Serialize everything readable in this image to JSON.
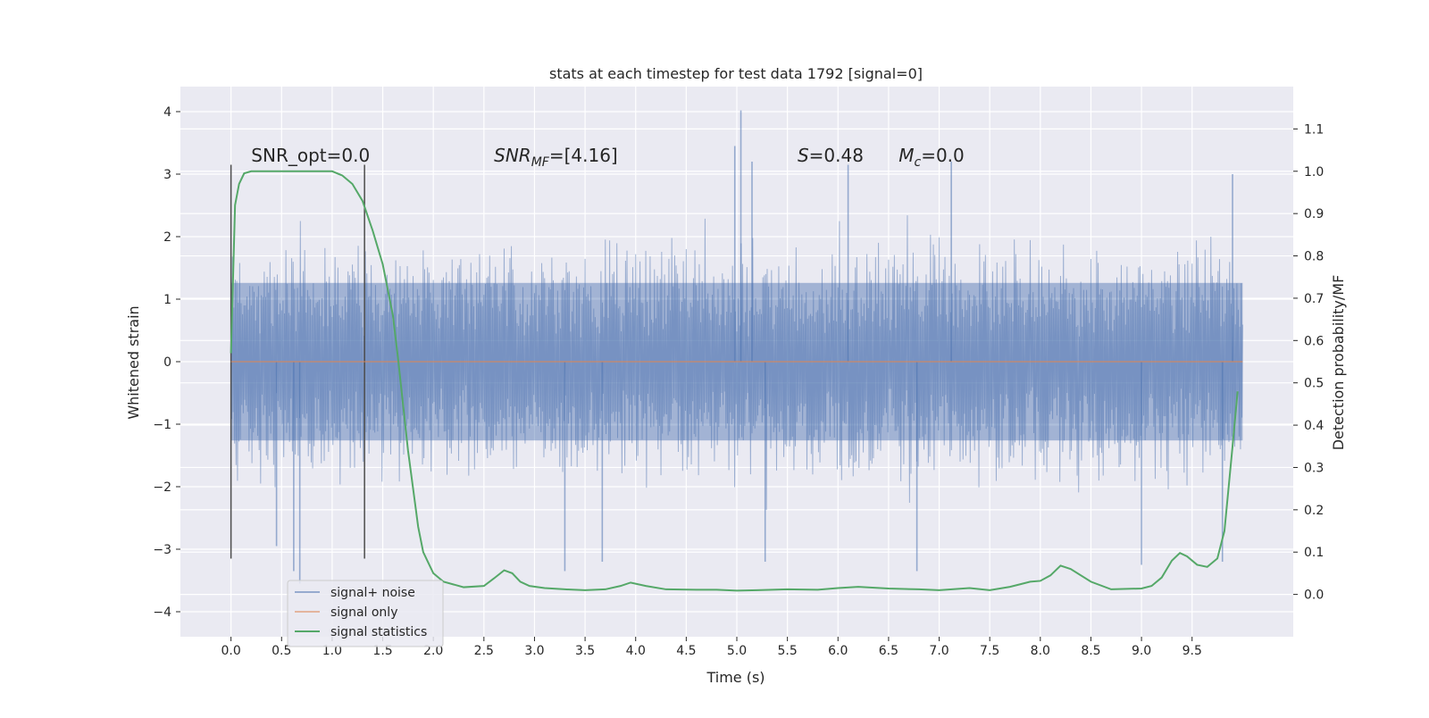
{
  "chart_data": {
    "type": "line",
    "title": "stats at each timestep for test data 1792 [signal=0]",
    "xlabel": "Time (s)",
    "ylabel": "Whitened strain",
    "y2label": "Detection probability/MF",
    "xlim": [
      -0.5,
      10.5
    ],
    "ylim": [
      -4.4,
      4.4
    ],
    "y2lim": [
      -0.1,
      1.2
    ],
    "x_ticks": [
      0.0,
      0.5,
      1.0,
      1.5,
      2.0,
      2.5,
      3.0,
      3.5,
      4.0,
      4.5,
      5.0,
      5.5,
      6.0,
      6.5,
      7.0,
      7.5,
      8.0,
      8.5,
      9.0,
      9.5
    ],
    "x_tick_labels": [
      "0.0",
      "0.5",
      "1.0",
      "1.5",
      "2.0",
      "2.5",
      "3.0",
      "3.5",
      "4.0",
      "4.5",
      "5.0",
      "5.5",
      "6.0",
      "6.5",
      "7.0",
      "7.5",
      "8.0",
      "8.5",
      "9.0",
      "9.5"
    ],
    "y_ticks": [
      4,
      3,
      2,
      1,
      0,
      -1,
      -2,
      -3,
      -4
    ],
    "y_tick_labels": [
      "4",
      "3",
      "2",
      "1",
      "0",
      "−1",
      "−2",
      "−3",
      "−4"
    ],
    "y2_ticks": [
      1.1,
      1.0,
      0.9,
      0.8,
      0.7,
      0.6,
      0.5,
      0.4,
      0.3,
      0.2,
      0.1,
      0.0
    ],
    "y2_tick_labels": [
      "1.1",
      "1.0",
      "0.9",
      "0.8",
      "0.7",
      "0.6",
      "0.5",
      "0.4",
      "0.3",
      "0.2",
      "0.1",
      "0.0"
    ],
    "grid": true,
    "legend_position": "lower-left",
    "series": [
      {
        "name": "signal+ noise",
        "color": "#4c72b0",
        "axis": "left",
        "description": "dense whitened noise, roughly uniform amplitude",
        "x_range": [
          0.0,
          10.0
        ],
        "envelope": {
          "typical_max": 2.1,
          "typical_min": -2.1
        },
        "peaks": [
          {
            "x": 5.04,
            "y": 4.02
          },
          {
            "x": 4.98,
            "y": 3.45
          },
          {
            "x": 5.15,
            "y": 3.2
          },
          {
            "x": 0.68,
            "y": -3.55
          },
          {
            "x": 0.62,
            "y": -3.35
          },
          {
            "x": 0.45,
            "y": -2.95
          },
          {
            "x": 3.3,
            "y": -3.35
          },
          {
            "x": 3.67,
            "y": -3.2
          },
          {
            "x": 5.28,
            "y": -3.2
          },
          {
            "x": 6.78,
            "y": -3.35
          },
          {
            "x": 9.0,
            "y": -3.25
          },
          {
            "x": 9.8,
            "y": -3.2
          },
          {
            "x": 7.12,
            "y": 3.2
          },
          {
            "x": 6.1,
            "y": 3.15
          },
          {
            "x": 9.9,
            "y": 3.0
          }
        ]
      },
      {
        "name": "signal only",
        "color": "#dd8452",
        "axis": "left",
        "x": [
          0.0,
          10.0
        ],
        "y": [
          0.0,
          0.0
        ]
      },
      {
        "name": "signal statistics",
        "color": "#55a868",
        "axis": "right",
        "x": [
          0.0,
          0.04,
          0.08,
          0.13,
          0.2,
          0.3,
          0.5,
          0.8,
          1.0,
          1.1,
          1.2,
          1.3,
          1.4,
          1.5,
          1.6,
          1.65,
          1.7,
          1.75,
          1.8,
          1.85,
          1.9,
          2.0,
          2.1,
          2.3,
          2.5,
          2.6,
          2.7,
          2.78,
          2.86,
          2.95,
          3.1,
          3.3,
          3.5,
          3.7,
          3.85,
          3.95,
          4.1,
          4.3,
          4.6,
          4.8,
          5.0,
          5.2,
          5.5,
          5.8,
          6.0,
          6.2,
          6.5,
          6.8,
          7.0,
          7.3,
          7.5,
          7.7,
          7.9,
          8.0,
          8.1,
          8.2,
          8.3,
          8.5,
          8.7,
          9.0,
          9.1,
          9.2,
          9.3,
          9.38,
          9.45,
          9.55,
          9.65,
          9.75,
          9.82,
          9.9,
          9.95
        ],
        "y": [
          0.57,
          0.92,
          0.97,
          0.995,
          1.0,
          1.0,
          1.0,
          1.0,
          1.0,
          0.99,
          0.97,
          0.93,
          0.86,
          0.78,
          0.66,
          0.56,
          0.45,
          0.34,
          0.25,
          0.16,
          0.1,
          0.05,
          0.03,
          0.017,
          0.02,
          0.038,
          0.057,
          0.05,
          0.03,
          0.02,
          0.015,
          0.012,
          0.01,
          0.012,
          0.02,
          0.028,
          0.02,
          0.012,
          0.011,
          0.011,
          0.009,
          0.01,
          0.012,
          0.011,
          0.015,
          0.018,
          0.014,
          0.012,
          0.01,
          0.015,
          0.01,
          0.018,
          0.03,
          0.032,
          0.045,
          0.068,
          0.06,
          0.03,
          0.012,
          0.014,
          0.02,
          0.04,
          0.08,
          0.098,
          0.09,
          0.07,
          0.065,
          0.085,
          0.15,
          0.35,
          0.48
        ]
      }
    ],
    "vertical_markers": [
      {
        "x": 0.0,
        "y_range": [
          -3.15,
          3.15
        ],
        "color": "#4d4d4d"
      },
      {
        "x": 1.32,
        "y_range": [
          -3.15,
          3.15
        ],
        "color": "#4d4d4d"
      }
    ],
    "annotations": [
      {
        "id": "snr_opt",
        "x": 0.2,
        "y": 3.2,
        "text": "SNR_opt=0.0"
      },
      {
        "id": "snr_mf",
        "x": 2.6,
        "y": 3.2,
        "text_main": "SNR",
        "text_sub": "MF",
        "text_rest": "=[4.16]"
      },
      {
        "id": "s_stat",
        "x": 5.6,
        "y": 3.2,
        "text_main": "S",
        "text_rest": "=0.48"
      },
      {
        "id": "mc_stat",
        "x": 6.6,
        "y": 3.2,
        "text_main": "M",
        "text_sub": "c",
        "text_rest": "=0.0"
      }
    ]
  }
}
